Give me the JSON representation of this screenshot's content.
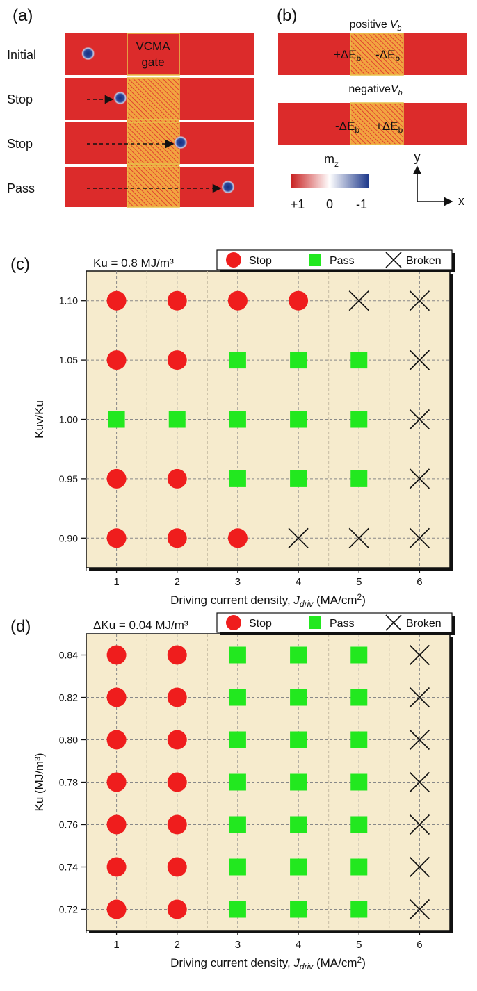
{
  "colors": {
    "strip": "#dc2b2b",
    "gate_fill": "#f2a440",
    "gate_stroke": "#e8c24a",
    "skyrmion": "#1b3b91",
    "plot_bg": "#f6ebcd",
    "stop": "#ef1d1d",
    "pass": "#22e81f",
    "broken": "#111111",
    "cbar_pos": "#c81f1f",
    "cbar_neg": "#1f3a8c"
  },
  "panel_a": {
    "label": "(a)",
    "gate_label_line1": "VCMA",
    "gate_label_line2": "gate",
    "rows": [
      {
        "label": "Initial",
        "skyrmion_x": 0.12,
        "arrow": false
      },
      {
        "label": "Stop",
        "skyrmion_x": 0.29,
        "arrow": true
      },
      {
        "label": "Stop",
        "skyrmion_x": 0.61,
        "arrow": true
      },
      {
        "label": "Pass",
        "skyrmion_x": 0.86,
        "arrow": true
      }
    ]
  },
  "panel_b": {
    "label": "(b)",
    "positive_title": "positive",
    "negative_title": "negative",
    "vb_symbol": "V",
    "vb_sub": "b",
    "pos_left": "+ΔE",
    "pos_right": "-ΔE",
    "neg_left": "-ΔE",
    "neg_right": "+ΔE",
    "e_sub": "b",
    "colorbar_title": "m",
    "colorbar_sub": "z",
    "colorbar_ticks": [
      "+1",
      "0",
      "-1"
    ],
    "axis_y": "y",
    "axis_x": "x"
  },
  "legend": {
    "stop": "Stop",
    "pass": "Pass",
    "broken": "Broken"
  },
  "chart_data": [
    {
      "type": "scatter",
      "panel": "(c)",
      "annotation": "Ku = 0.8 MJ/m³",
      "xlabel": "Driving current density, Jdriv (MA/cm2)",
      "ylabel": "Kuv/Ku",
      "xlim": [
        0.5,
        6.5
      ],
      "ylim": [
        0.875,
        1.125
      ],
      "x_ticks": [
        1,
        2,
        3,
        4,
        5,
        6
      ],
      "y_ticks": [
        0.9,
        0.95,
        1.0,
        1.05,
        1.1
      ],
      "y_tick_labels": [
        "0.90",
        "0.95",
        "1.00",
        "1.05",
        "1.10"
      ],
      "grid": true,
      "legend_position": "top",
      "series": [
        {
          "name": "Stop",
          "points": [
            [
              1,
              1.1
            ],
            [
              2,
              1.1
            ],
            [
              3,
              1.1
            ],
            [
              4,
              1.1
            ],
            [
              1,
              1.05
            ],
            [
              2,
              1.05
            ],
            [
              1,
              0.95
            ],
            [
              2,
              0.95
            ],
            [
              1,
              0.9
            ],
            [
              2,
              0.9
            ],
            [
              3,
              0.9
            ]
          ]
        },
        {
          "name": "Pass",
          "points": [
            [
              3,
              1.05
            ],
            [
              4,
              1.05
            ],
            [
              5,
              1.05
            ],
            [
              1,
              1.0
            ],
            [
              2,
              1.0
            ],
            [
              3,
              1.0
            ],
            [
              4,
              1.0
            ],
            [
              5,
              1.0
            ],
            [
              3,
              0.95
            ],
            [
              4,
              0.95
            ],
            [
              5,
              0.95
            ]
          ]
        },
        {
          "name": "Broken",
          "points": [
            [
              5,
              1.1
            ],
            [
              6,
              1.1
            ],
            [
              6,
              1.05
            ],
            [
              6,
              1.0
            ],
            [
              6,
              0.95
            ],
            [
              4,
              0.9
            ],
            [
              5,
              0.9
            ],
            [
              6,
              0.9
            ]
          ]
        }
      ]
    },
    {
      "type": "scatter",
      "panel": "(d)",
      "annotation": "ΔKu = 0.04 MJ/m³",
      "xlabel": "Driving current density, Jdriv (MA/cm2)",
      "ylabel": "Ku (MJ/m³)",
      "xlim": [
        0.5,
        6.5
      ],
      "ylim": [
        0.71,
        0.85
      ],
      "x_ticks": [
        1,
        2,
        3,
        4,
        5,
        6
      ],
      "y_ticks": [
        0.72,
        0.74,
        0.76,
        0.78,
        0.8,
        0.82,
        0.84
      ],
      "y_tick_labels": [
        "0.72",
        "0.74",
        "0.76",
        "0.78",
        "0.80",
        "0.82",
        "0.84"
      ],
      "grid": true,
      "legend_position": "top",
      "series": [
        {
          "name": "Stop",
          "points": [
            [
              1,
              0.84
            ],
            [
              2,
              0.84
            ],
            [
              1,
              0.82
            ],
            [
              2,
              0.82
            ],
            [
              1,
              0.8
            ],
            [
              2,
              0.8
            ],
            [
              1,
              0.78
            ],
            [
              2,
              0.78
            ],
            [
              1,
              0.76
            ],
            [
              2,
              0.76
            ],
            [
              1,
              0.74
            ],
            [
              2,
              0.74
            ],
            [
              1,
              0.72
            ],
            [
              2,
              0.72
            ]
          ]
        },
        {
          "name": "Pass",
          "points": [
            [
              3,
              0.84
            ],
            [
              4,
              0.84
            ],
            [
              5,
              0.84
            ],
            [
              3,
              0.82
            ],
            [
              4,
              0.82
            ],
            [
              5,
              0.82
            ],
            [
              3,
              0.8
            ],
            [
              4,
              0.8
            ],
            [
              5,
              0.8
            ],
            [
              3,
              0.78
            ],
            [
              4,
              0.78
            ],
            [
              5,
              0.78
            ],
            [
              3,
              0.76
            ],
            [
              4,
              0.76
            ],
            [
              5,
              0.76
            ],
            [
              3,
              0.74
            ],
            [
              4,
              0.74
            ],
            [
              5,
              0.74
            ],
            [
              3,
              0.72
            ],
            [
              4,
              0.72
            ],
            [
              5,
              0.72
            ]
          ]
        },
        {
          "name": "Broken",
          "points": [
            [
              6,
              0.84
            ],
            [
              6,
              0.82
            ],
            [
              6,
              0.8
            ],
            [
              6,
              0.78
            ],
            [
              6,
              0.76
            ],
            [
              6,
              0.74
            ],
            [
              6,
              0.72
            ]
          ]
        }
      ]
    }
  ]
}
